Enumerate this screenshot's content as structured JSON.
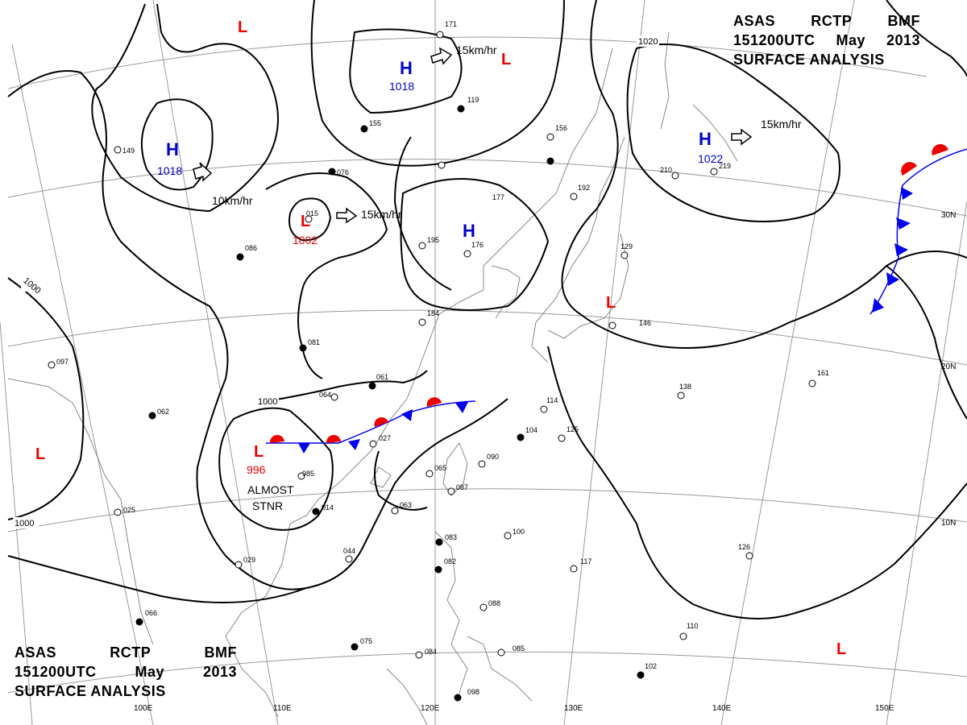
{
  "header": {
    "agency": "ASAS",
    "station": "RCTP",
    "office": "BMF",
    "time": "151200UTC",
    "month": "May",
    "year": "2013",
    "product": "SURFACE ANALYSIS"
  },
  "graticule": {
    "longitude_labels": [
      "100E",
      "110E",
      "120E",
      "130E",
      "140E",
      "150E"
    ],
    "latitude_labels": [
      "30N",
      "20N",
      "10N"
    ]
  },
  "isobar_labels": [
    "1020",
    "1000",
    "1000",
    "1000"
  ],
  "pressure_centers": [
    {
      "type": "H",
      "value": "1018",
      "color": "#0000cc"
    },
    {
      "type": "H",
      "value": "1018",
      "color": "#0000cc"
    },
    {
      "type": "H",
      "value": "1022",
      "color": "#0000cc"
    },
    {
      "type": "H",
      "value": "",
      "color": "#0000cc"
    },
    {
      "type": "L",
      "value": "1002",
      "color": "#ee0000"
    },
    {
      "type": "L",
      "value": "996",
      "color": "#ee0000"
    },
    {
      "type": "L",
      "value": "",
      "color": "#ee0000"
    },
    {
      "type": "L",
      "value": "",
      "color": "#ee0000"
    },
    {
      "type": "L",
      "value": "",
      "color": "#ee0000"
    },
    {
      "type": "L",
      "value": "",
      "color": "#ee0000"
    },
    {
      "type": "L",
      "value": "",
      "color": "#ee0000"
    }
  ],
  "motion_labels": [
    "10km/hr",
    "15km/hr",
    "15km/hr",
    "15km/hr"
  ],
  "annotation": {
    "line1": "ALMOST",
    "line2": "STNR"
  },
  "station_values": [
    "149",
    "076",
    "015",
    "086",
    "155",
    "177",
    "195",
    "176",
    "156",
    "192",
    "210",
    "219",
    "129",
    "081",
    "061",
    "064",
    "027",
    "114",
    "104",
    "125",
    "138",
    "161",
    "985",
    "014",
    "063",
    "065",
    "087",
    "090",
    "100",
    "117",
    "126",
    "083",
    "082",
    "088",
    "085",
    "098",
    "102",
    "110",
    "075",
    "084",
    "066",
    "029",
    "025",
    "097",
    "062",
    "044",
    "184",
    "146",
    "171",
    "119"
  ],
  "colors": {
    "isobar": "#000000",
    "high": "#0000cc",
    "low": "#ee0000",
    "warm_front": "#ee0000",
    "cold_front": "#0000ee",
    "graticule": "#999999",
    "coast": "#888888"
  }
}
